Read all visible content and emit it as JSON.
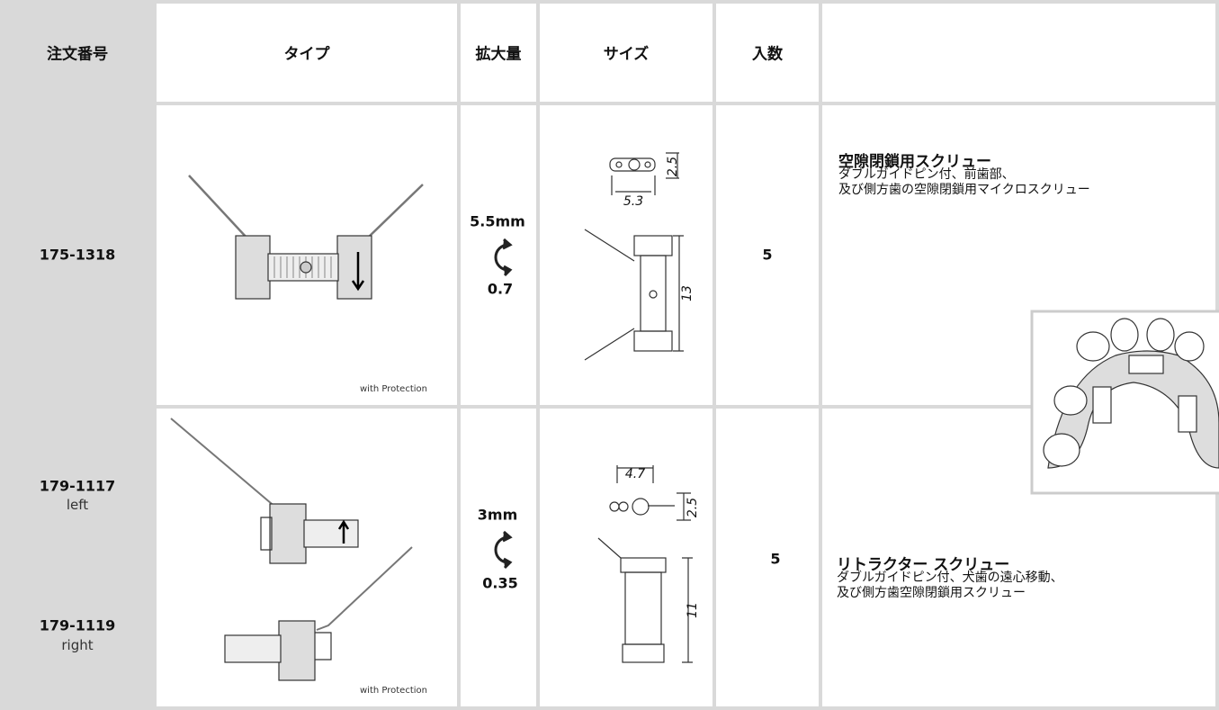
{
  "table": {
    "header": [
      "注文番号",
      "タイプ",
      "拡大量",
      "サイズ",
      "入数"
    ],
    "rows": [
      {
        "orders": [
          {
            "number": "175-1318"
          }
        ],
        "type_note": "with Protection",
        "expansion": "5.5mm",
        "per_turn": "0.7",
        "size_labels": [
          "2.5",
          "5.3",
          "13"
        ],
        "quantity": "5",
        "description": {
          "title": "空隙閉鎖用スクリュー",
          "lines": [
            "ダブルガイドピン付、前歯部、",
            "及び側方歯の空隙閉鎖用マイクロスクリュー"
          ]
        }
      },
      {
        "orders": [
          {
            "number": "179-1117",
            "side": "left"
          },
          {
            "number": "179-1119",
            "side": "right"
          }
        ],
        "type_note": "with Protection",
        "expansion": "3mm",
        "per_turn": "0.35",
        "size_labels": [
          "4.7",
          "2.5",
          "11"
        ],
        "quantity": "5",
        "description": {
          "title": "リトラクター スクリュー",
          "lines": [
            "ダブルガイドピン付、犬歯の遠心移動、",
            "及び側方歯空隙閉鎖用スクリュー"
          ]
        }
      }
    ]
  }
}
